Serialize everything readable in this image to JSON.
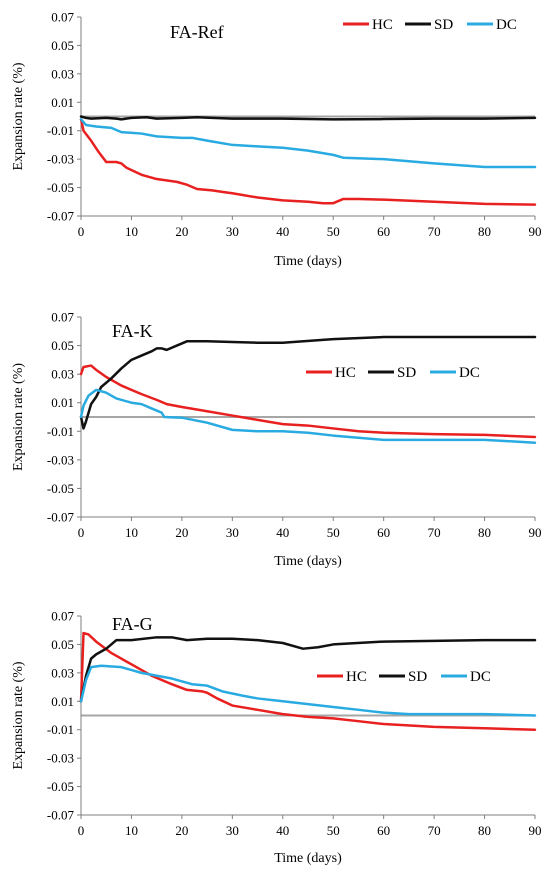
{
  "chart_data": [
    {
      "type": "line",
      "title": "FA-Ref",
      "xlabel": "Time (days)",
      "ylabel": "Expansion rate (%)",
      "xlim": [
        0,
        90
      ],
      "ylim": [
        -0.07,
        0.07
      ],
      "xticks": [
        "0",
        "10",
        "20",
        "30",
        "40",
        "50",
        "60",
        "70",
        "80",
        "90"
      ],
      "yticks": [
        "0.07",
        "0.05",
        "0.03",
        "0.01",
        "-0.01",
        "-0.03",
        "-0.05",
        "-0.07"
      ],
      "legend_position": "top-right",
      "reference_line": 0,
      "series": [
        {
          "name": "HC",
          "color": "#e8201f",
          "points": [
            [
              0,
              -0.002
            ],
            [
              0.5,
              -0.01
            ],
            [
              2,
              -0.017
            ],
            [
              3.5,
              -0.025
            ],
            [
              5,
              -0.032
            ],
            [
              7,
              -0.032
            ],
            [
              8,
              -0.033
            ],
            [
              9,
              -0.036
            ],
            [
              12,
              -0.041
            ],
            [
              15,
              -0.044
            ],
            [
              19,
              -0.046
            ],
            [
              21,
              -0.048
            ],
            [
              23,
              -0.051
            ],
            [
              26,
              -0.052
            ],
            [
              28,
              -0.053
            ],
            [
              30,
              -0.054
            ],
            [
              35,
              -0.057
            ],
            [
              40,
              -0.059
            ],
            [
              45,
              -0.06
            ],
            [
              48,
              -0.061
            ],
            [
              50,
              -0.061
            ],
            [
              52,
              -0.058
            ],
            [
              55,
              -0.058
            ],
            [
              60,
              -0.0585
            ],
            [
              70,
              -0.06
            ],
            [
              80,
              -0.0615
            ],
            [
              90,
              -0.062
            ]
          ]
        },
        {
          "name": "SD",
          "color": "#111111",
          "points": [
            [
              0,
              0.0
            ],
            [
              1,
              -0.001
            ],
            [
              2,
              -0.0015
            ],
            [
              5,
              -0.001
            ],
            [
              7,
              -0.0015
            ],
            [
              8,
              -0.002
            ],
            [
              10,
              -0.001
            ],
            [
              13,
              -0.0005
            ],
            [
              15,
              -0.0015
            ],
            [
              20,
              -0.001
            ],
            [
              23,
              -0.0005
            ],
            [
              26,
              -0.001
            ],
            [
              30,
              -0.0015
            ],
            [
              40,
              -0.0015
            ],
            [
              50,
              -0.002
            ],
            [
              60,
              -0.0018
            ],
            [
              70,
              -0.0015
            ],
            [
              80,
              -0.0015
            ],
            [
              90,
              -0.001
            ]
          ]
        },
        {
          "name": "DC",
          "color": "#29abe2",
          "points": [
            [
              0,
              -0.002
            ],
            [
              1,
              -0.006
            ],
            [
              3,
              -0.007
            ],
            [
              6,
              -0.008
            ],
            [
              8,
              -0.011
            ],
            [
              12,
              -0.012
            ],
            [
              15,
              -0.014
            ],
            [
              20,
              -0.015
            ],
            [
              22,
              -0.015
            ],
            [
              25,
              -0.017
            ],
            [
              30,
              -0.02
            ],
            [
              35,
              -0.021
            ],
            [
              40,
              -0.022
            ],
            [
              45,
              -0.024
            ],
            [
              50,
              -0.027
            ],
            [
              52,
              -0.029
            ],
            [
              60,
              -0.03
            ],
            [
              70,
              -0.033
            ],
            [
              80,
              -0.0355
            ],
            [
              90,
              -0.0355
            ]
          ]
        }
      ]
    },
    {
      "type": "line",
      "title": "FA-K",
      "xlabel": "Time (days)",
      "ylabel": "Expansion rate (%)",
      "xlim": [
        0,
        90
      ],
      "ylim": [
        -0.07,
        0.07
      ],
      "xticks": [
        "0",
        "10",
        "20",
        "30",
        "40",
        "50",
        "60",
        "70",
        "80",
        "90"
      ],
      "yticks": [
        "0.07",
        "0.05",
        "0.03",
        "0.01",
        "-0.01",
        "-0.03",
        "-0.05",
        "-0.07"
      ],
      "legend_position": "center-right",
      "reference_line": 0,
      "series": [
        {
          "name": "HC",
          "color": "#e8201f",
          "points": [
            [
              0,
              0.03
            ],
            [
              0.5,
              0.035
            ],
            [
              2,
              0.036
            ],
            [
              3,
              0.033
            ],
            [
              5,
              0.028
            ],
            [
              8,
              0.022
            ],
            [
              12,
              0.016
            ],
            [
              15,
              0.012
            ],
            [
              17,
              0.009
            ],
            [
              20,
              0.007
            ],
            [
              25,
              0.004
            ],
            [
              30,
              0.001
            ],
            [
              35,
              -0.002
            ],
            [
              40,
              -0.005
            ],
            [
              45,
              -0.006
            ],
            [
              50,
              -0.008
            ],
            [
              55,
              -0.01
            ],
            [
              60,
              -0.011
            ],
            [
              70,
              -0.012
            ],
            [
              80,
              -0.0125
            ],
            [
              90,
              -0.014
            ]
          ]
        },
        {
          "name": "SD",
          "color": "#111111",
          "points": [
            [
              0,
              0.0
            ],
            [
              0.5,
              -0.008
            ],
            [
              1,
              -0.003
            ],
            [
              2,
              0.009
            ],
            [
              3,
              0.014
            ],
            [
              4,
              0.021
            ],
            [
              6,
              0.027
            ],
            [
              8,
              0.034
            ],
            [
              10,
              0.04
            ],
            [
              12,
              0.043
            ],
            [
              14,
              0.046
            ],
            [
              15,
              0.048
            ],
            [
              16,
              0.048
            ],
            [
              17,
              0.047
            ],
            [
              19,
              0.05
            ],
            [
              21,
              0.053
            ],
            [
              25,
              0.053
            ],
            [
              30,
              0.0525
            ],
            [
              35,
              0.052
            ],
            [
              40,
              0.052
            ],
            [
              50,
              0.0545
            ],
            [
              60,
              0.056
            ],
            [
              70,
              0.056
            ],
            [
              80,
              0.056
            ],
            [
              90,
              0.056
            ]
          ]
        },
        {
          "name": "DC",
          "color": "#29abe2",
          "points": [
            [
              0,
              0.0
            ],
            [
              0.5,
              0.008
            ],
            [
              1.5,
              0.015
            ],
            [
              3,
              0.019
            ],
            [
              5,
              0.017
            ],
            [
              7,
              0.013
            ],
            [
              10,
              0.01
            ],
            [
              12,
              0.009
            ],
            [
              14,
              0.006
            ],
            [
              16,
              0.003
            ],
            [
              16.5,
              0.0
            ],
            [
              20,
              -0.0005
            ],
            [
              25,
              -0.004
            ],
            [
              30,
              -0.009
            ],
            [
              35,
              -0.01
            ],
            [
              40,
              -0.01
            ],
            [
              45,
              -0.011
            ],
            [
              50,
              -0.013
            ],
            [
              60,
              -0.016
            ],
            [
              70,
              -0.016
            ],
            [
              80,
              -0.016
            ],
            [
              90,
              -0.018
            ]
          ]
        }
      ]
    },
    {
      "type": "line",
      "title": "FA-G",
      "xlabel": "Time (days)",
      "ylabel": "Expansion rate (%)",
      "xlim": [
        0,
        90
      ],
      "ylim": [
        -0.07,
        0.07
      ],
      "xticks": [
        "0",
        "10",
        "20",
        "30",
        "40",
        "50",
        "60",
        "70",
        "80",
        "90"
      ],
      "yticks": [
        "0.07",
        "0.05",
        "0.03",
        "0.01",
        "-0.01",
        "-0.03",
        "-0.05",
        "-0.07"
      ],
      "legend_position": "center-right",
      "reference_line": 0,
      "series": [
        {
          "name": "HC",
          "color": "#e8201f",
          "points": [
            [
              0,
              0.01
            ],
            [
              0.5,
              0.058
            ],
            [
              1.5,
              0.057
            ],
            [
              3,
              0.052
            ],
            [
              6,
              0.044
            ],
            [
              10,
              0.036
            ],
            [
              14,
              0.028
            ],
            [
              18,
              0.022
            ],
            [
              21,
              0.018
            ],
            [
              24,
              0.017
            ],
            [
              25,
              0.016
            ],
            [
              27,
              0.012
            ],
            [
              30,
              0.007
            ],
            [
              35,
              0.004
            ],
            [
              40,
              0.001
            ],
            [
              45,
              -0.001
            ],
            [
              50,
              -0.002
            ],
            [
              55,
              -0.004
            ],
            [
              60,
              -0.006
            ],
            [
              70,
              -0.008
            ],
            [
              80,
              -0.009
            ],
            [
              90,
              -0.01
            ]
          ]
        },
        {
          "name": "SD",
          "color": "#111111",
          "points": [
            [
              0,
              0.01
            ],
            [
              1,
              0.028
            ],
            [
              2,
              0.04
            ],
            [
              3,
              0.043
            ],
            [
              5,
              0.047
            ],
            [
              7,
              0.053
            ],
            [
              10,
              0.053
            ],
            [
              15,
              0.055
            ],
            [
              18,
              0.055
            ],
            [
              21,
              0.053
            ],
            [
              25,
              0.054
            ],
            [
              30,
              0.054
            ],
            [
              35,
              0.053
            ],
            [
              40,
              0.051
            ],
            [
              44,
              0.047
            ],
            [
              47,
              0.048
            ],
            [
              50,
              0.05
            ],
            [
              60,
              0.052
            ],
            [
              70,
              0.0525
            ],
            [
              80,
              0.053
            ],
            [
              90,
              0.053
            ]
          ]
        },
        {
          "name": "DC",
          "color": "#29abe2",
          "points": [
            [
              0,
              0.01
            ],
            [
              1,
              0.025
            ],
            [
              2,
              0.034
            ],
            [
              4,
              0.035
            ],
            [
              8,
              0.034
            ],
            [
              12,
              0.03
            ],
            [
              18,
              0.026
            ],
            [
              22,
              0.022
            ],
            [
              25,
              0.021
            ],
            [
              28,
              0.017
            ],
            [
              32,
              0.014
            ],
            [
              35,
              0.012
            ],
            [
              40,
              0.01
            ],
            [
              45,
              0.008
            ],
            [
              50,
              0.006
            ],
            [
              55,
              0.004
            ],
            [
              60,
              0.002
            ],
            [
              65,
              0.001
            ],
            [
              70,
              0.001
            ],
            [
              80,
              0.001
            ],
            [
              90,
              0.0
            ]
          ]
        }
      ]
    }
  ]
}
